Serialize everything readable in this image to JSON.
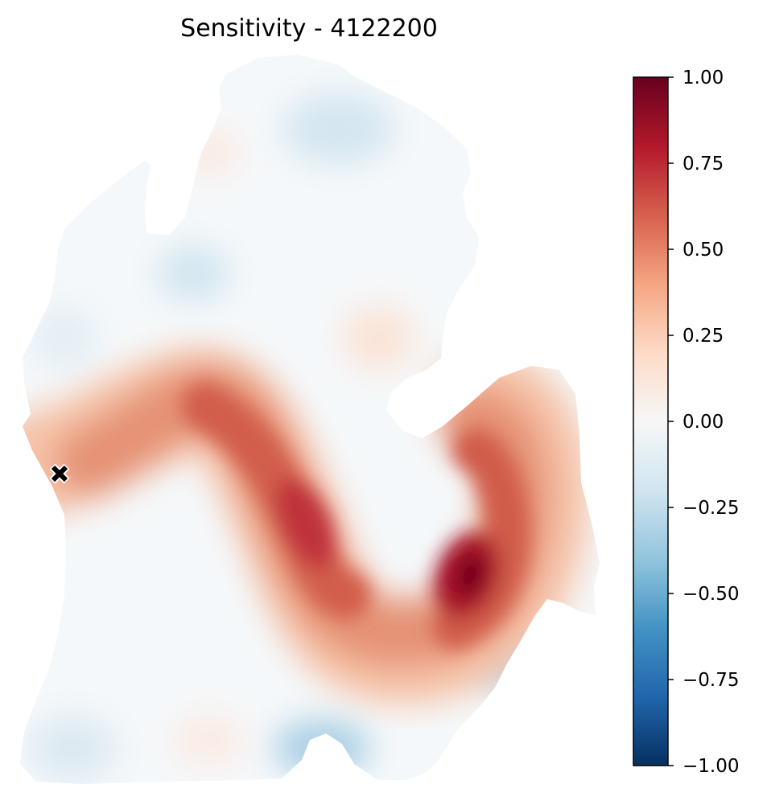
{
  "chart_data": {
    "type": "heatmap",
    "title": "Sensitivity - 4122200",
    "colormap": "RdBu_r",
    "colorbar": {
      "range": [
        -1.0,
        1.0
      ],
      "ticks": [
        1.0,
        0.75,
        0.5,
        0.25,
        0.0,
        -0.25,
        -0.5,
        -0.75,
        -1.0
      ],
      "tick_labels": [
        "1.00",
        "0.75",
        "0.50",
        "0.25",
        "0.00",
        "−0.25",
        "−0.50",
        "−0.75",
        "−1.00"
      ],
      "colors": [
        "#67001f",
        "#b2182b",
        "#d6604d",
        "#f4a582",
        "#fddbc7",
        "#f7f7f7",
        "#d1e5f0",
        "#92c5de",
        "#4393c3",
        "#2166ac",
        "#053061"
      ]
    },
    "marker": {
      "symbol": "x",
      "color": "#000000"
    },
    "grid": false,
    "legend": "none"
  }
}
